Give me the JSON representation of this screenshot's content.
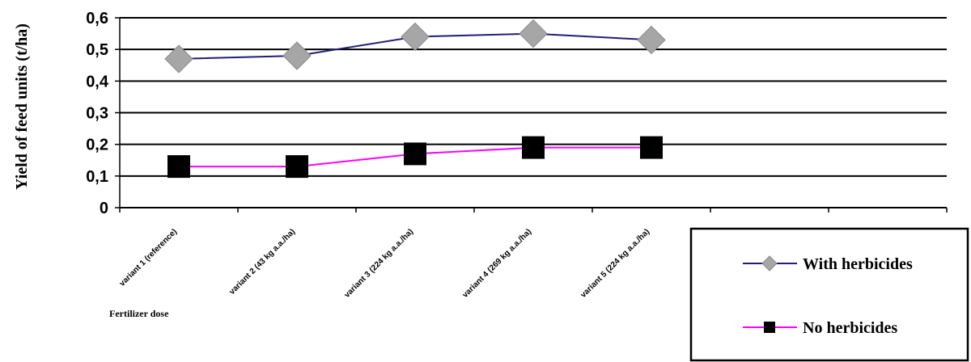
{
  "chart_data": {
    "type": "line",
    "categories": [
      "variant 1 (reference)",
      "variant 2 (43 kg a.a./ha)",
      "variant 3 (224 kg a.a./ha)",
      "variant 4 (269 kg a.a./ha)",
      "variant 5 (224 kg a.a./ha)"
    ],
    "series": [
      {
        "name": "With herbicides",
        "values": [
          0.47,
          0.48,
          0.54,
          0.55,
          0.53
        ],
        "line_color": "#1f1f7a",
        "marker": "diamond",
        "marker_color": "#a6a6a6"
      },
      {
        "name": "No herbicides",
        "values": [
          0.13,
          0.13,
          0.17,
          0.19,
          0.19
        ],
        "line_color": "#ff00ff",
        "marker": "square",
        "marker_color": "#000000"
      }
    ],
    "xlabel": "Fertilizer dose",
    "ylabel": "Yield of feed units (t/ha)",
    "ylim": [
      0,
      0.6
    ],
    "yticks": [
      "0",
      "0,1",
      "0,2",
      "0,3",
      "0,4",
      "0,5",
      "0,6"
    ],
    "grid": true,
    "legend": "bottom-right"
  }
}
